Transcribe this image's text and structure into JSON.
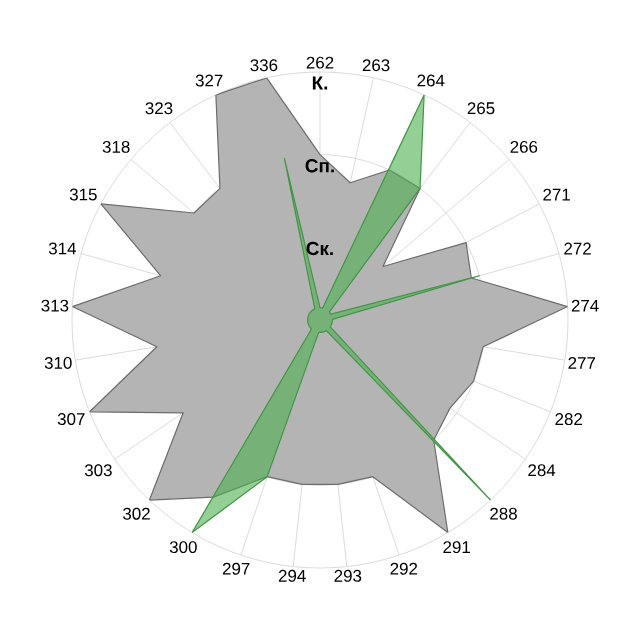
{
  "chart_data": {
    "type": "radar",
    "categories": [
      "262",
      "263",
      "264",
      "265",
      "266",
      "271",
      "272",
      "274",
      "277",
      "282",
      "284",
      "288",
      "291",
      "292",
      "293",
      "294",
      "297",
      "300",
      "302",
      "303",
      "307",
      "310",
      "313",
      "314",
      "315",
      "318",
      "323",
      "327",
      "336"
    ],
    "ylim": [
      0,
      3
    ],
    "yticks": [
      {
        "value": 1,
        "label": "Ск."
      },
      {
        "value": 2,
        "label": "Сп."
      },
      {
        "value": 3,
        "label": "К."
      }
    ],
    "grid": true,
    "series": [
      {
        "color": "#b4b4b4",
        "values": [
          2.0,
          1.7,
          2.0,
          2.0,
          1.0,
          2.0,
          1.9,
          3.0,
          2.0,
          2.0,
          1.9,
          2.0,
          3.0,
          2.0,
          2.0,
          2.0,
          2.0,
          2.5,
          3.0,
          2.0,
          3.0,
          2.0,
          3.0,
          2.0,
          3.0,
          2.0,
          2.0,
          3.0,
          3.0
        ]
      },
      {
        "color": "#4caf50",
        "values": [
          0.15,
          0.15,
          3.0,
          2.0,
          0.15,
          0.15,
          2.0,
          0.15,
          0.15,
          0.15,
          0.15,
          3.0,
          0.15,
          0.15,
          0.15,
          0.15,
          2.0,
          3.0,
          0.15,
          0.15,
          0.15,
          0.15,
          0.15,
          0.15,
          0.15,
          0.15,
          0.15,
          0.15,
          2.0
        ]
      }
    ]
  }
}
